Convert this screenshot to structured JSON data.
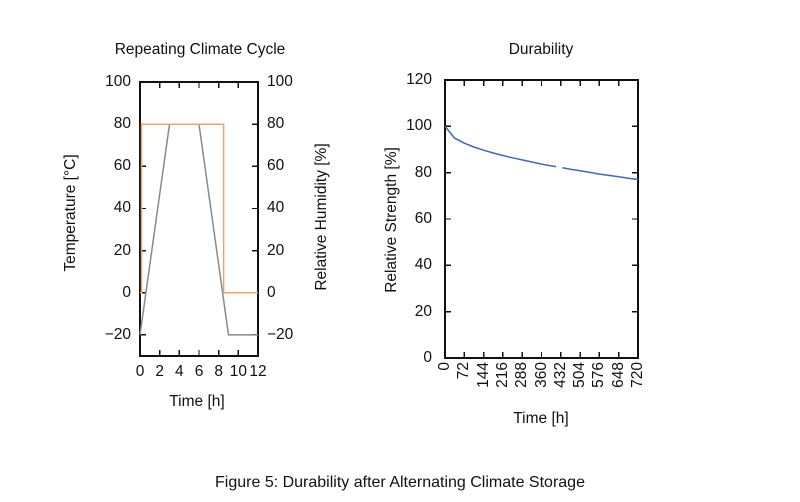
{
  "figure": {
    "caption": "Figure 5: Durability after Alternating Climate Storage"
  },
  "colors": {
    "background": "#ffffff",
    "frame": "#111111",
    "text": "#111111",
    "temperature_line": "#8a8a8a",
    "humidity_line": "#f0a35e",
    "strength_line": "#4169b4"
  },
  "chart_data": [
    {
      "type": "line",
      "title": "Repeating Climate Cycle",
      "xlabel": "Time [h]",
      "ylabel": "Temperature [°C]",
      "ylabel_right": "Relative Humidity [%]",
      "xlim": [
        0,
        12
      ],
      "ylim": [
        -30,
        100
      ],
      "grid": false,
      "legend": "none",
      "x_ticks": {
        "values": [
          0,
          2,
          4,
          6,
          8,
          10,
          12
        ],
        "labels": [
          "0",
          "2",
          "4",
          "6",
          "8",
          "10",
          "12"
        ],
        "rotation": 0
      },
      "y_ticks": {
        "values": [
          100,
          80,
          60,
          40,
          20,
          0,
          -20
        ],
        "labels": [
          "100",
          "80",
          "60",
          "40",
          "20",
          "0",
          "−20"
        ],
        "mirrored_right_labels": true
      },
      "series": [
        {
          "name": "Temperature",
          "color": "#8a8a8a",
          "points": [
            [
              0,
              -20
            ],
            [
              3,
              80
            ],
            [
              6,
              80
            ],
            [
              9,
              -20
            ],
            [
              12,
              -20
            ]
          ]
        },
        {
          "name": "Relative Humidity",
          "color": "#f0a35e",
          "points": [
            [
              0,
              0
            ],
            [
              0.15,
              0
            ],
            [
              0.15,
              80
            ],
            [
              8.5,
              80
            ],
            [
              8.5,
              0
            ],
            [
              12,
              0
            ]
          ]
        }
      ]
    },
    {
      "type": "line",
      "title": "Durability",
      "xlabel": "Time [h]",
      "ylabel": "Relative Strength [%]",
      "xlim": [
        0,
        720
      ],
      "ylim": [
        0,
        120
      ],
      "grid": false,
      "legend": "none",
      "x_ticks": {
        "values": [
          0,
          72,
          144,
          216,
          288,
          360,
          432,
          504,
          576,
          648,
          720
        ],
        "labels": [
          "0",
          "72",
          "144",
          "216",
          "288",
          "360",
          "432",
          "504",
          "576",
          "648",
          "720"
        ],
        "rotation": -90
      },
      "y_ticks": {
        "values": [
          120,
          100,
          80,
          60,
          40,
          20,
          0
        ],
        "labels": [
          "120",
          "100",
          "80",
          "60",
          "40",
          "20",
          "0"
        ],
        "mirrored_right_labels": false
      },
      "series": [
        {
          "name": "Relative Strength",
          "color": "#4169b4",
          "points": [
            [
              0,
              100
            ],
            [
              36,
              94.9
            ],
            [
              72,
              92.7
            ],
            [
              108,
              91.1
            ],
            [
              144,
              89.7
            ],
            [
              180,
              88.5
            ],
            [
              216,
              87.4
            ],
            [
              252,
              86.4
            ],
            [
              288,
              85.5
            ],
            [
              324,
              84.6
            ],
            [
              360,
              83.7
            ],
            [
              396,
              82.9
            ],
            [
              414,
              82.6
            ],
            null,
            [
              438,
              82.1
            ],
            [
              468,
              81.5
            ],
            [
              504,
              80.8
            ],
            [
              540,
              80.1
            ],
            [
              576,
              79.4
            ],
            [
              612,
              78.8
            ],
            [
              648,
              78.2
            ],
            [
              684,
              77.6
            ],
            [
              720,
              77.0
            ]
          ]
        }
      ]
    }
  ]
}
